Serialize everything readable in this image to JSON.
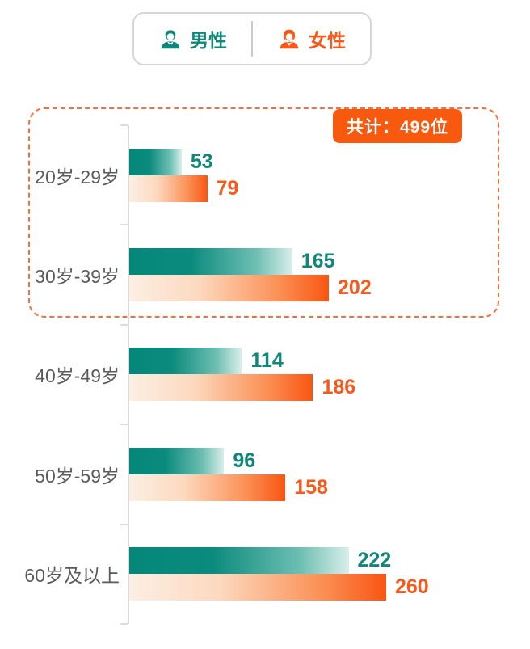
{
  "legend": {
    "male": {
      "label": "男性",
      "color": "#0F8779"
    },
    "female": {
      "label": "女性",
      "color": "#F8591A"
    }
  },
  "callout": {
    "total_badge": "共计：499位"
  },
  "chart_data": {
    "type": "bar",
    "orientation": "horizontal",
    "categories": [
      "20岁-29岁",
      "30岁-39岁",
      "40岁-49岁",
      "50岁-59岁",
      "60岁及以上"
    ],
    "series": [
      {
        "name": "男性",
        "color": "#0B8B7D",
        "values": [
          53,
          165,
          114,
          96,
          222
        ]
      },
      {
        "name": "女性",
        "color": "#F95512",
        "values": [
          79,
          202,
          186,
          158,
          260
        ]
      }
    ],
    "value_labels_shown": true,
    "highlight": {
      "categories": [
        "20岁-29岁",
        "30岁-39岁"
      ],
      "badge_text": "共计：499位",
      "total": 499
    },
    "legend_position": "top",
    "grid": false,
    "xlim": [
      0,
      270
    ],
    "axis_line_color": "#DCDCDC"
  },
  "colors": {
    "male_bar_gradient_start": "#04877A",
    "male_bar_gradient_end": "#D8EFEA",
    "female_bar_gradient_start": "#FCEFE3",
    "female_bar_gradient_end": "#F95512",
    "badge_bg": "#F7590F",
    "callout_border": "#FB6E3A",
    "category_label_color": "#5B5B5B"
  }
}
